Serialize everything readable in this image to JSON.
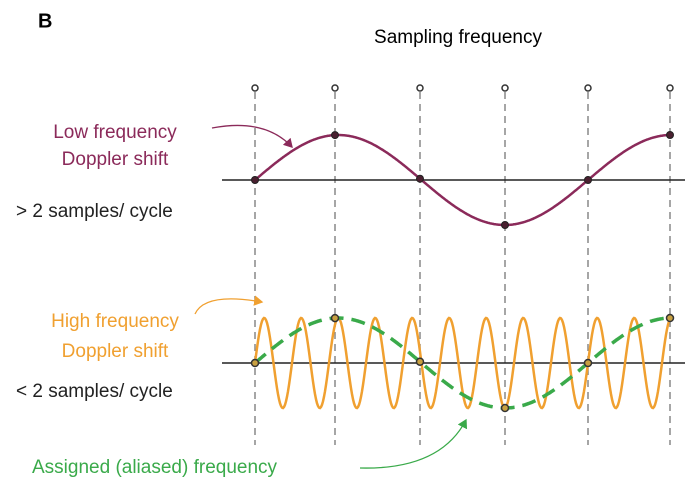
{
  "panel_label": "B",
  "title": "Sampling frequency",
  "top": {
    "label_lines": [
      "Low frequency",
      "Doppler shift"
    ],
    "condition": "> 2 samples/ cycle"
  },
  "bottom": {
    "label_lines": [
      "High frequency",
      "Doppler shift"
    ],
    "condition": "< 2 samples/ cycle"
  },
  "alias_label": "Assigned (aliased) frequency"
}
